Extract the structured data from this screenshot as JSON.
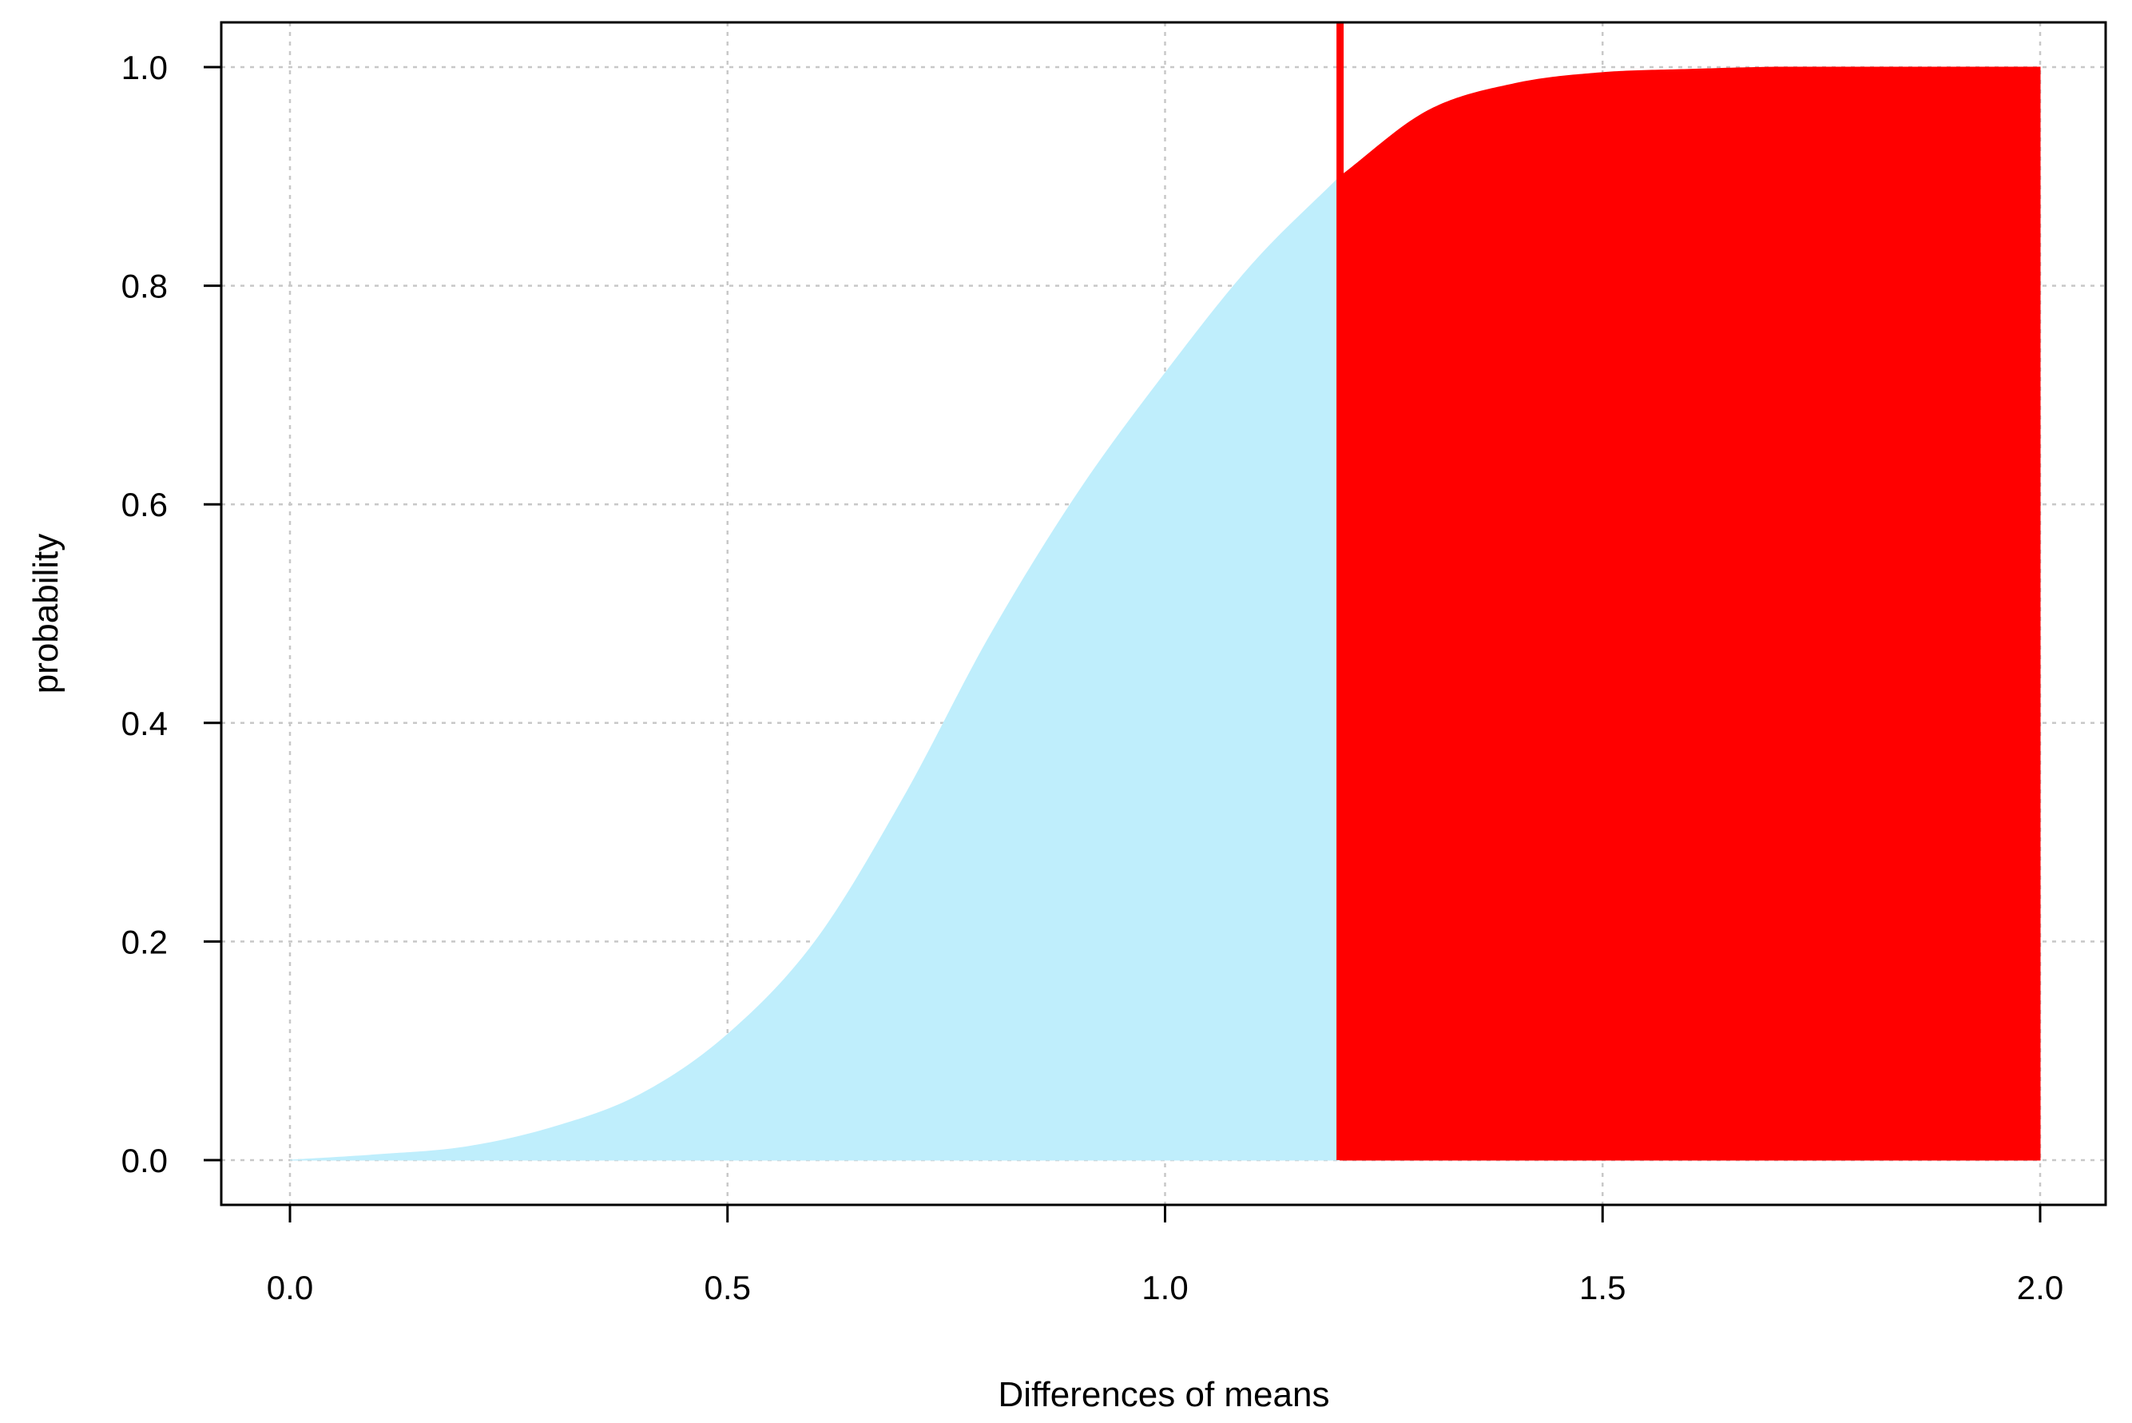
{
  "chart_data": {
    "type": "area",
    "title": "",
    "xlabel": "Differences of means",
    "ylabel": "probability",
    "xlim": [
      0.0,
      2.0
    ],
    "ylim": [
      0.0,
      1.0
    ],
    "x_ticks": [
      "0.0",
      "0.5",
      "1.0",
      "1.5",
      "2.0"
    ],
    "y_ticks": [
      "0.0",
      "0.2",
      "0.4",
      "0.6",
      "0.8",
      "1.0"
    ],
    "grid": true,
    "threshold_x": 1.2,
    "series": [
      {
        "x": [
          0.0,
          0.1,
          0.2,
          0.3,
          0.4,
          0.5,
          0.6,
          0.7,
          0.8,
          0.9,
          1.0,
          1.1,
          1.2
        ],
        "values": [
          0.0,
          0.005,
          0.012,
          0.03,
          0.06,
          0.115,
          0.2,
          0.33,
          0.48,
          0.61,
          0.72,
          0.82,
          0.9
        ],
        "color": "#BFEEFC"
      },
      {
        "x": [
          1.2,
          1.3,
          1.4,
          1.5,
          1.6,
          1.7,
          1.8,
          1.9,
          2.0
        ],
        "values": [
          0.9,
          0.96,
          0.985,
          0.995,
          0.998,
          1.0,
          1.0,
          1.0,
          1.0
        ],
        "color": "#FF0000"
      }
    ],
    "threshold_color": "#FF0000",
    "grid_color": "#C8C8C8"
  }
}
